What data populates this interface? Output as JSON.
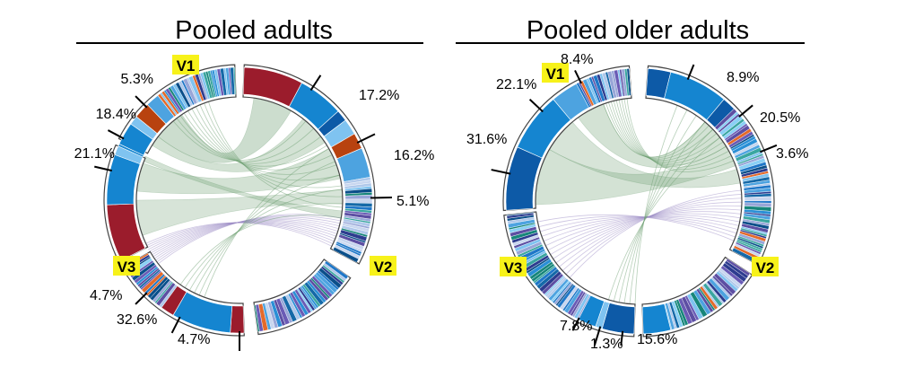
{
  "chart_data": [
    {
      "type": "chord",
      "title": "Pooled adults",
      "segments": [
        {
          "name": "V1",
          "labels": [
            {
              "text": "5.3%",
              "value": 5.3
            },
            {
              "text": "18.4%",
              "value": 18.4
            },
            {
              "text": "21.1%",
              "value": 21.1
            }
          ]
        },
        {
          "name": "V2",
          "labels": [
            {
              "text": "17.2%",
              "value": 17.2
            },
            {
              "text": "16.2%",
              "value": 16.2
            },
            {
              "text": "5.1%",
              "value": 5.1
            }
          ]
        },
        {
          "name": "V3",
          "labels": [
            {
              "text": "4.7%",
              "value": 4.7
            },
            {
              "text": "32.6%",
              "value": 32.6
            },
            {
              "text": "4.7%",
              "value": 4.7
            }
          ]
        }
      ]
    },
    {
      "type": "chord",
      "title": "Pooled older adults",
      "segments": [
        {
          "name": "V1",
          "labels": [
            {
              "text": "8.4%",
              "value": 8.4
            },
            {
              "text": "22.1%",
              "value": 22.1
            },
            {
              "text": "31.6%",
              "value": 31.6
            }
          ]
        },
        {
          "name": "V2",
          "labels": [
            {
              "text": "8.9%",
              "value": 8.9
            },
            {
              "text": "20.5%",
              "value": 20.5
            },
            {
              "text": "3.6%",
              "value": 3.6
            }
          ]
        },
        {
          "name": "V3",
          "labels": [
            {
              "text": "7.8%",
              "value": 7.8
            },
            {
              "text": "1.3%",
              "value": 1.3
            },
            {
              "text": "15.6%",
              "value": 15.6
            }
          ]
        }
      ]
    }
  ],
  "colors": {
    "clone_red": "#9b1c2c",
    "clone_blue": "#1585d0",
    "clone_navy": "#0d5aa7",
    "clone_orange": "#b8420f",
    "ribbon_green": "#6e9f72",
    "ribbon_purple": "#9b8cc6",
    "segment_label_bg": "#f7f21a"
  }
}
